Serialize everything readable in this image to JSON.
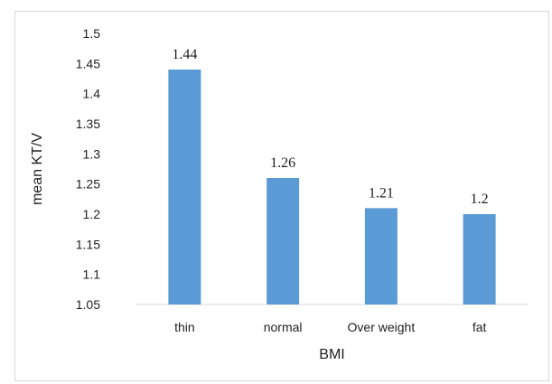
{
  "chart_data": {
    "type": "bar",
    "title": "",
    "xlabel": "BMI",
    "ylabel": "mean KT/V",
    "categories": [
      "thin",
      "normal",
      "Over weight",
      "fat"
    ],
    "values": [
      1.44,
      1.26,
      1.21,
      1.2
    ],
    "data_labels": [
      "1.44",
      "1.26",
      "1.21",
      "1.2"
    ],
    "ylim": [
      1.05,
      1.5
    ],
    "yticks": [
      "1.05",
      "1.1",
      "1.15",
      "1.2",
      "1.25",
      "1.3",
      "1.35",
      "1.4",
      "1.45",
      "1.5"
    ],
    "grid": false,
    "legend": "none",
    "bar_color": "#5b9bd5",
    "axis_color": "#d9d9d9"
  }
}
